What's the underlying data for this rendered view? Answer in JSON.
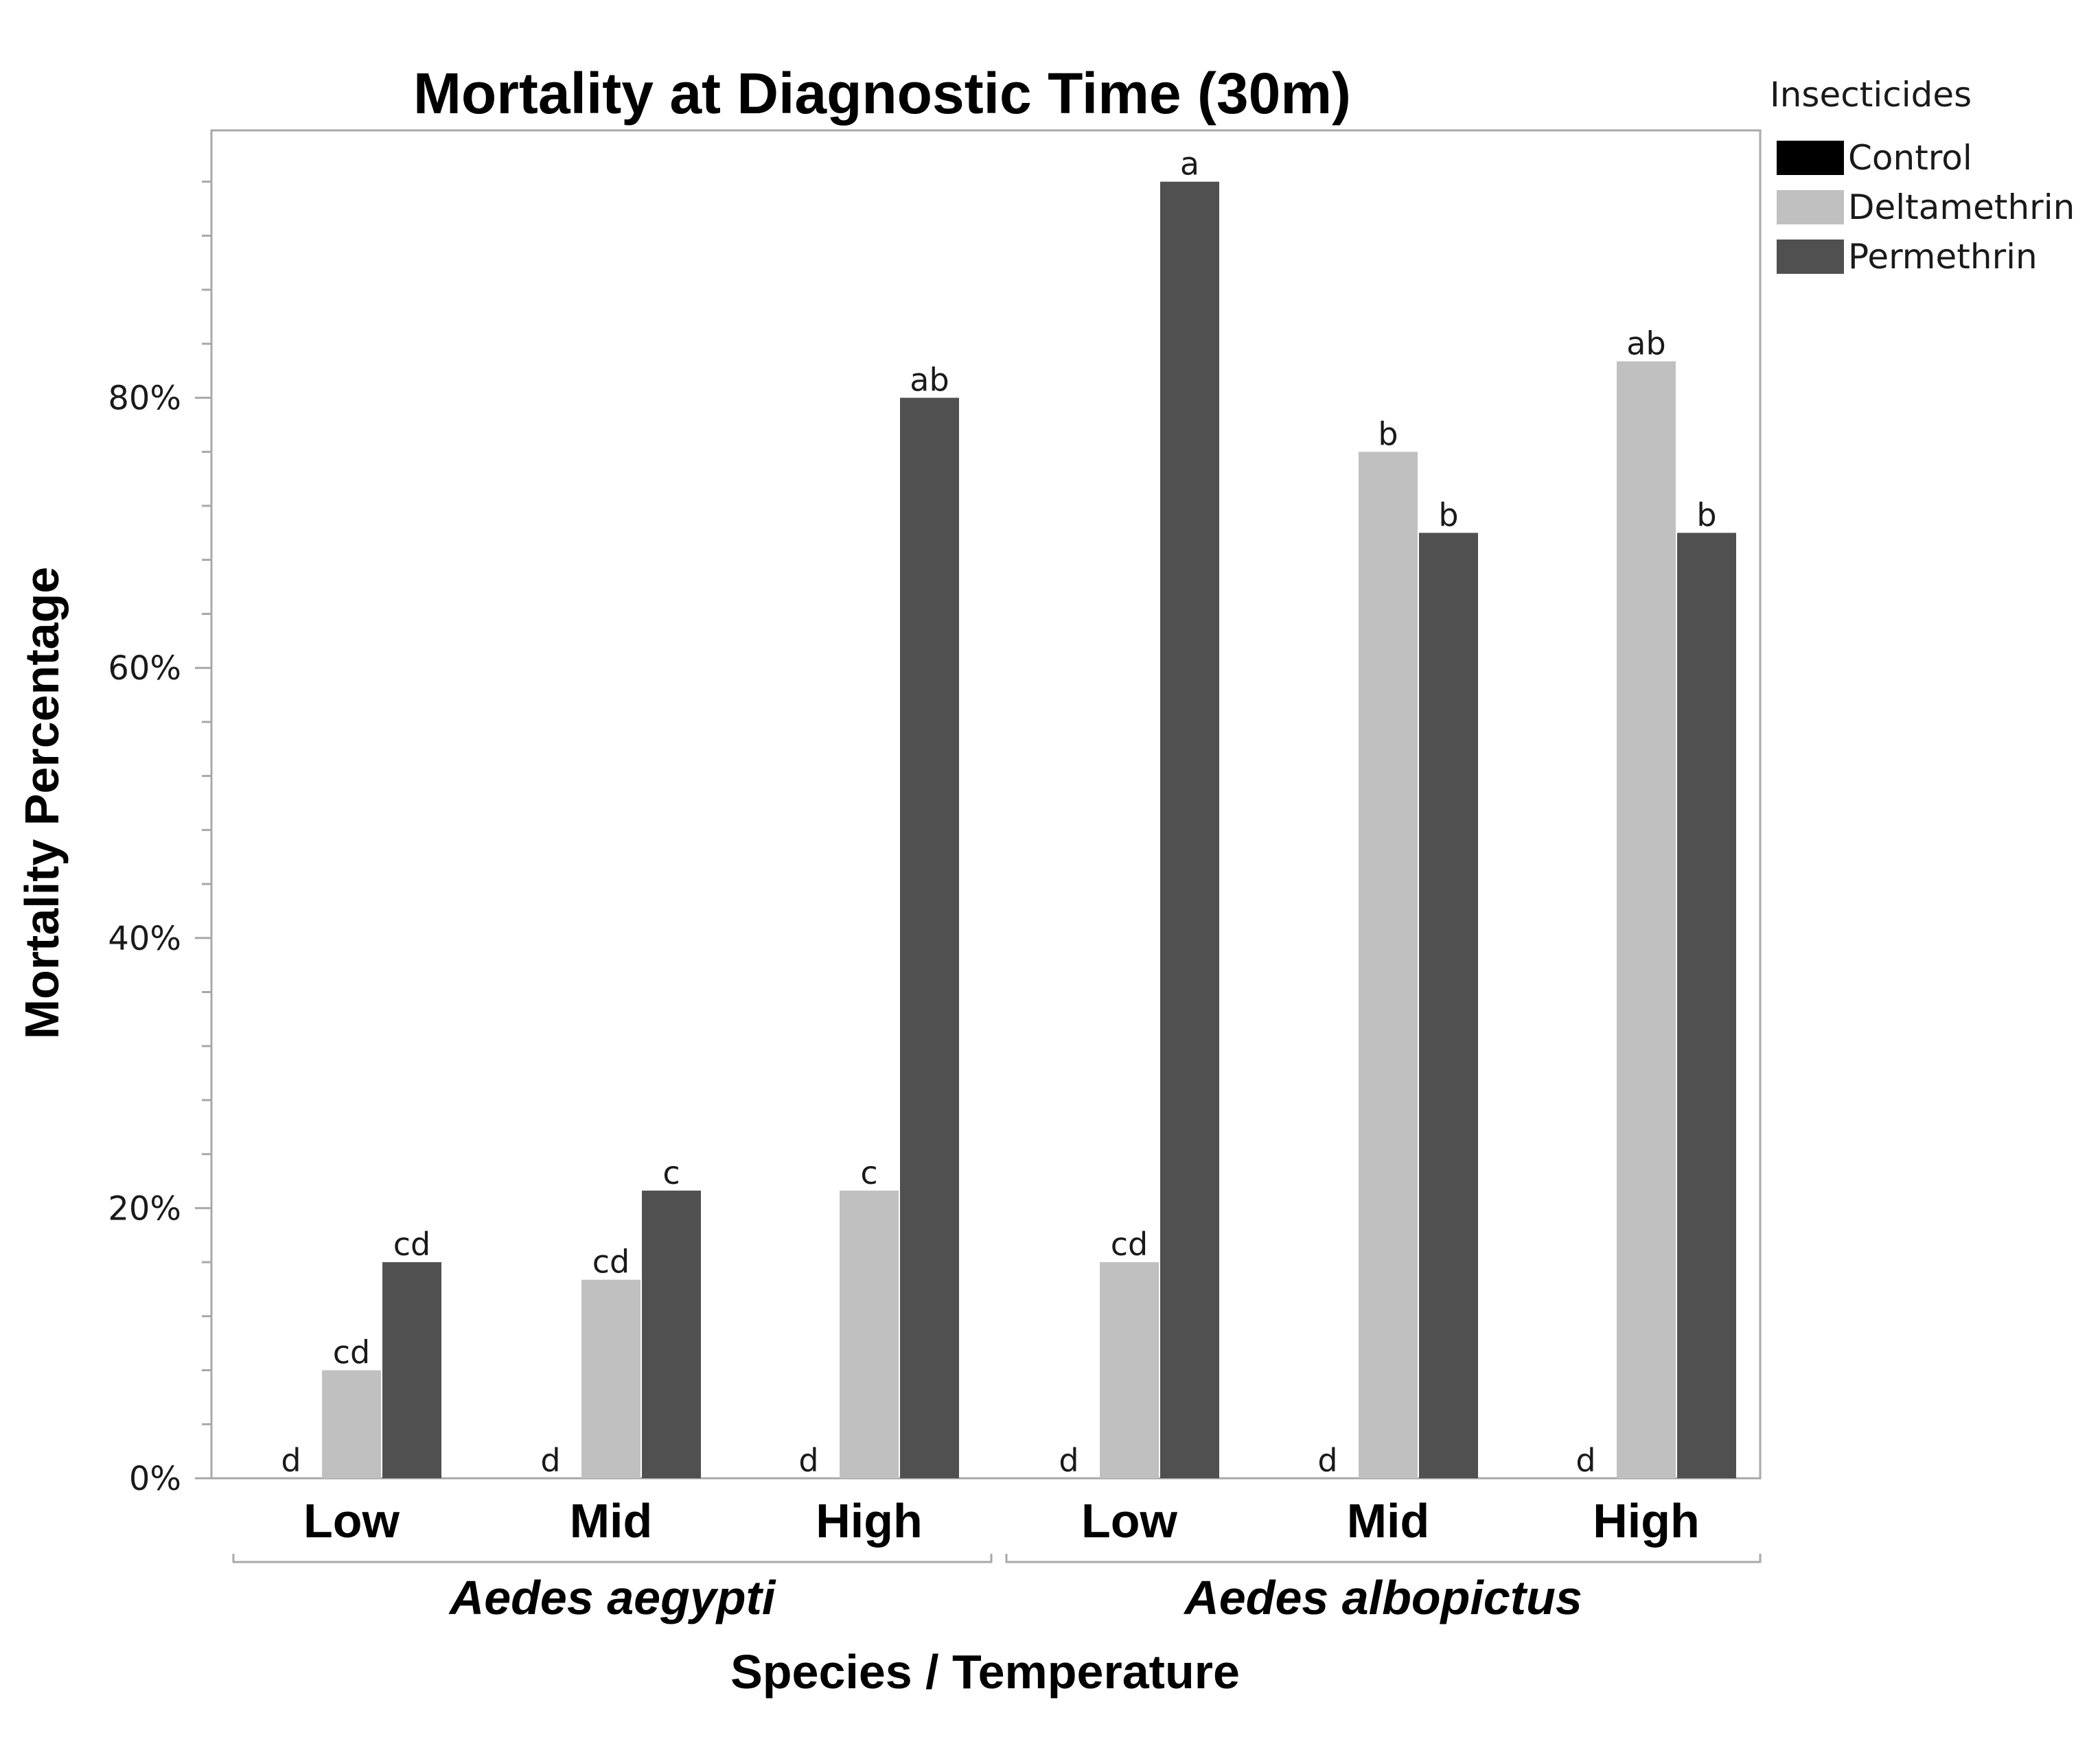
{
  "chart_data": {
    "type": "bar",
    "title": "Mortality at Diagnostic Time (30m)",
    "xlabel": "Species / Temperature",
    "ylabel": "Mortality Percentage",
    "ylim": [
      0,
      100
    ],
    "y_ticks": [
      0,
      20,
      40,
      60,
      80
    ],
    "y_tick_labels": [
      "0%",
      "20%",
      "40%",
      "60%",
      "80%"
    ],
    "grid": false,
    "legend": {
      "title": "Insecticides",
      "placement": "top-right outside"
    },
    "groups": [
      {
        "name": "Aedes aegypti",
        "categories": [
          "Low",
          "Mid",
          "High"
        ]
      },
      {
        "name": "Aedes albopictus",
        "categories": [
          "Low",
          "Mid",
          "High"
        ]
      }
    ],
    "categories": [
      "Low",
      "Mid",
      "High",
      "Low",
      "Mid",
      "High"
    ],
    "series": [
      {
        "name": "Control",
        "color": "#000000",
        "values": [
          0,
          0,
          0,
          0,
          0,
          0
        ],
        "labels": [
          "d",
          "d",
          "d",
          "d",
          "d",
          "d"
        ]
      },
      {
        "name": "Deltamethrin",
        "color": "#c0c0c0",
        "values": [
          8,
          14.7,
          21.3,
          16,
          76,
          82.7
        ],
        "labels": [
          "cd",
          "cd",
          "c",
          "cd",
          "b",
          "ab"
        ]
      },
      {
        "name": "Permethrin",
        "color": "#505050",
        "values": [
          16,
          21.3,
          80,
          96,
          70,
          70
        ],
        "labels": [
          "cd",
          "c",
          "ab",
          "a",
          "b",
          "b"
        ]
      }
    ]
  }
}
